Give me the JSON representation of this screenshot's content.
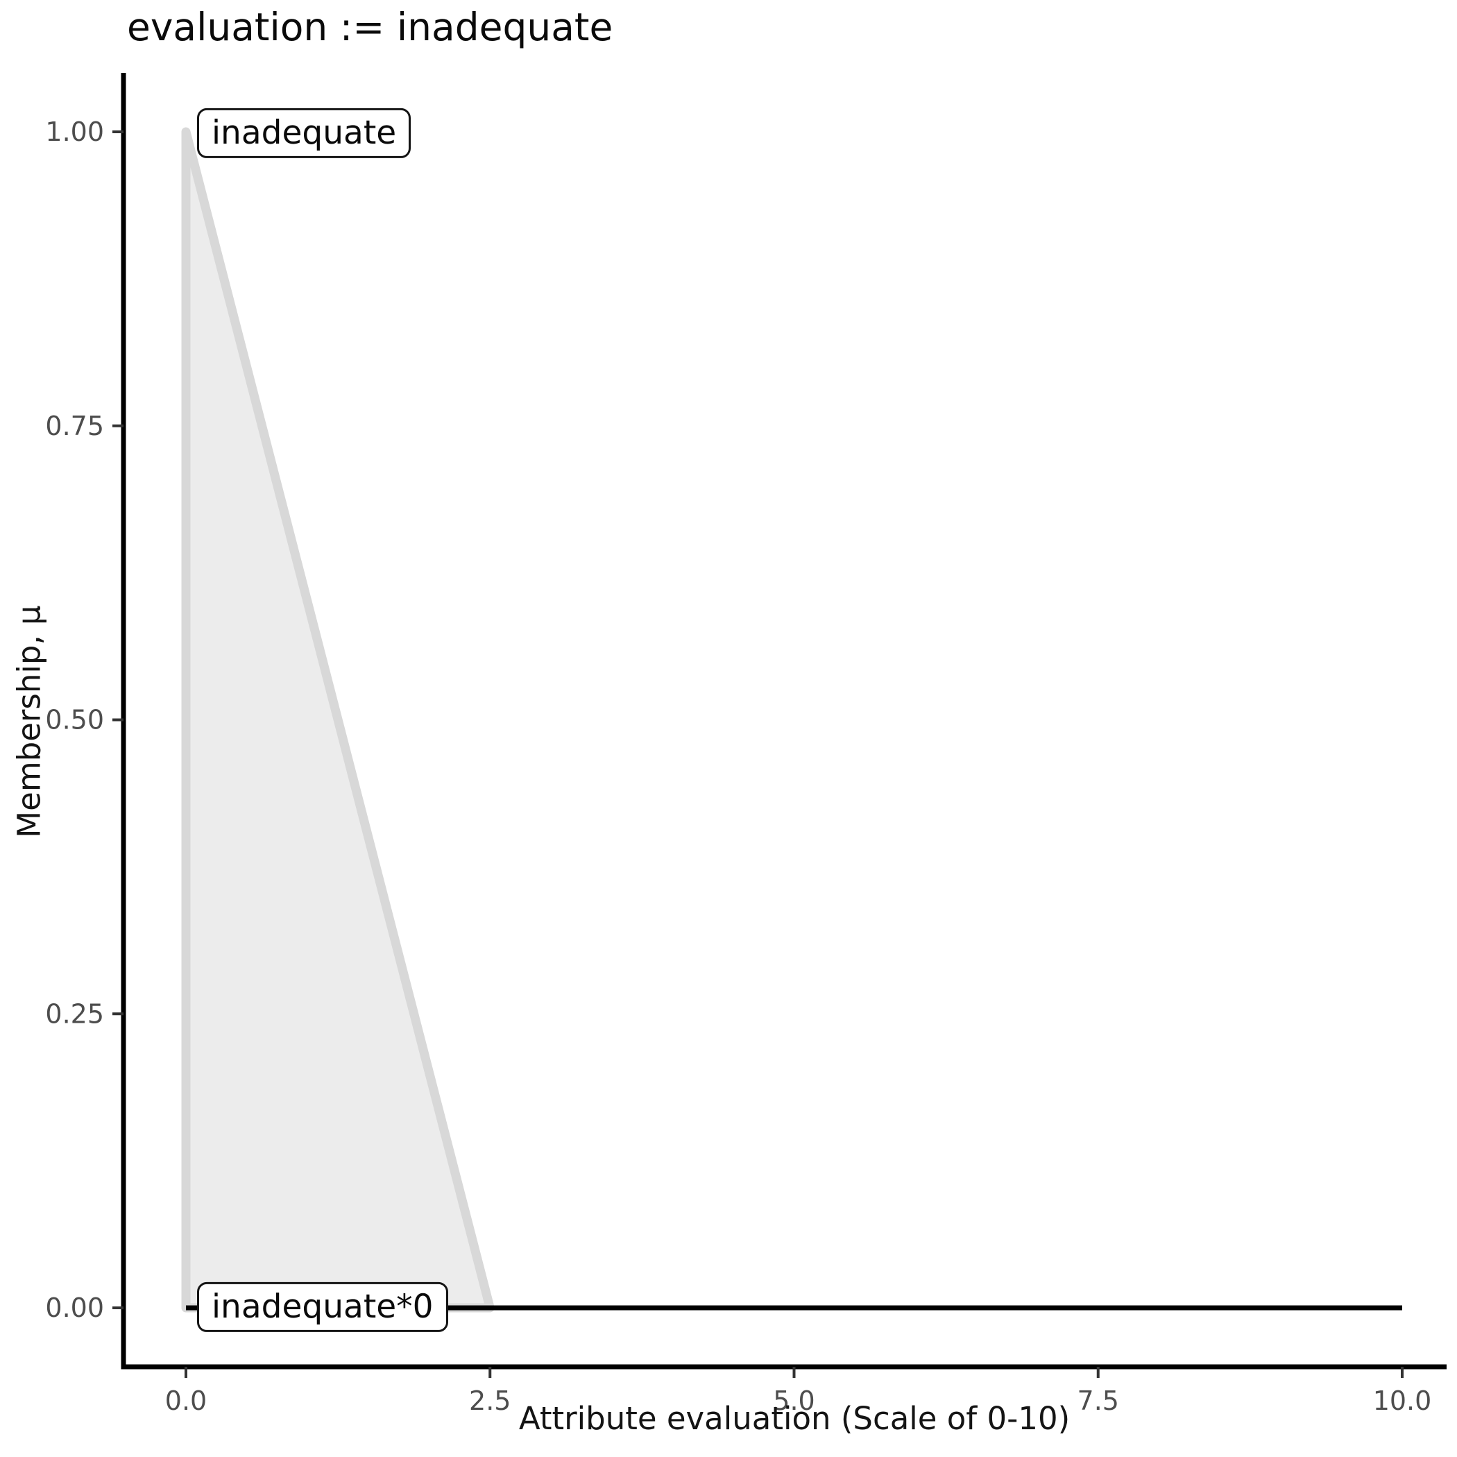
{
  "chart_data": {
    "type": "area",
    "title": "evaluation := inadequate",
    "xlabel": "Attribute evaluation (Scale of 0-10)",
    "ylabel": "Membership, μ",
    "xlim": [
      0,
      10
    ],
    "ylim": [
      0,
      1
    ],
    "grid": false,
    "legend_position": "none",
    "background_color": "#ffffff",
    "axis_color": "#000000",
    "tick_mark_color": "#333333",
    "tick_label_color": "#4d4d4d",
    "x_ticks": {
      "values": [
        0,
        2.5,
        5,
        7.5,
        10
      ],
      "labels": [
        "0.0",
        "2.5",
        "5.0",
        "7.5",
        "10.0"
      ]
    },
    "y_ticks": {
      "values": [
        0,
        0.25,
        0.5,
        0.75,
        1
      ],
      "labels": [
        "0.00",
        "0.25",
        "0.50",
        "0.75",
        "1.00"
      ]
    },
    "series": [
      {
        "name": "inadequate",
        "kind": "area",
        "description": "Triangular fuzzy membership function: mu = 1 at x = 0, decreasing linearly to mu = 0 at x = 2.5",
        "polygon": [
          [
            0,
            0
          ],
          [
            0,
            1
          ],
          [
            2.5,
            0
          ]
        ],
        "points": [
          [
            0,
            1
          ],
          [
            2.5,
            0
          ]
        ],
        "fill": "#ececec",
        "stroke": "#d8d8d8",
        "stroke_width": 13
      },
      {
        "name": "inadequate*0",
        "kind": "line",
        "description": "Activated set scaled by 0: mu = 0 for all x in [0, 10]",
        "points": [
          [
            0,
            0
          ],
          [
            10,
            0
          ]
        ],
        "stroke": "#000000",
        "stroke_width": 7
      }
    ],
    "annotations": [
      {
        "label": "inadequate",
        "x": 0.1,
        "y": 1.0
      },
      {
        "label": "inadequate*0",
        "x": 0.1,
        "y": 0.0
      }
    ]
  }
}
